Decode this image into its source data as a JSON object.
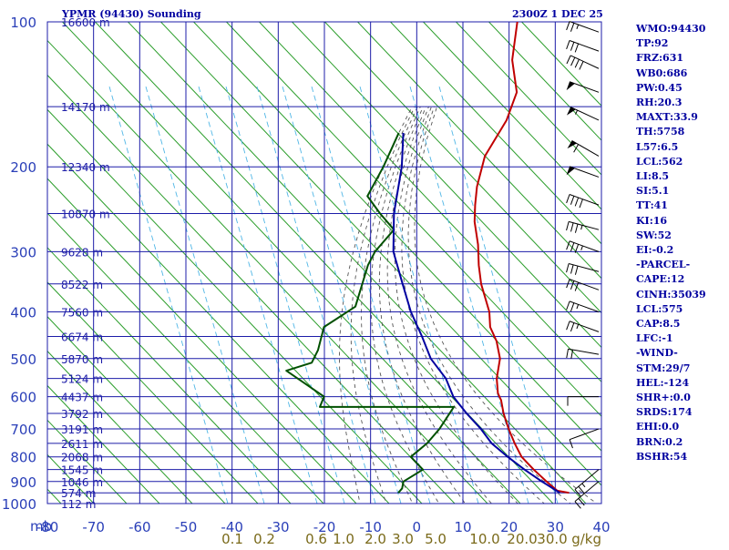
{
  "header": {
    "station": "YPMR (94430) Sounding",
    "time": "2300Z  1 DEC 25"
  },
  "indices": [
    "WMO:94430",
    "TP:92",
    "FRZ:631",
    "WB0:686",
    "PW:0.45",
    "RH:20.3",
    "MAXT:33.9",
    "TH:5758",
    "L57:6.5",
    "LCL:562",
    "LI:8.5",
    "SI:5.1",
    "TT:41",
    "KI:16",
    "SW:52",
    "EI:-0.2",
    "-PARCEL-",
    "CAPE:12",
    "CINH:35039",
    "LCL:575",
    "CAP:8.5",
    "LFC:-1",
    "-WIND-",
    "STM:29/7",
    "HEL:-124",
    "SHR+:0.0",
    "SRDS:174",
    "EHI:0.0",
    "BRN:0.2",
    "BSHR:54"
  ],
  "chart_data": {
    "type": "line",
    "title": "YPMR (94430) Sounding",
    "subtitle": "2300Z  1 DEC 25",
    "xlabel": "",
    "ylabel": "mb",
    "x_unit_label": "g/kg",
    "xlim": [
      -80,
      40
    ],
    "ylim": [
      1000,
      100
    ],
    "y_scale": "log",
    "grid": true,
    "pressure_ticks": [
      100,
      200,
      300,
      400,
      500,
      600,
      700,
      800,
      900,
      1000
    ],
    "temperature_ticks": [
      -80,
      -70,
      -60,
      -50,
      -40,
      -30,
      -20,
      -10,
      0,
      10,
      20,
      30,
      40
    ],
    "mixing_ratio_labels": [
      "0.1",
      "0.2",
      "0.6",
      "1.0",
      "2.0",
      "3.0",
      "5.0",
      "10.0",
      "20.0",
      "30.0"
    ],
    "height_labels": [
      {
        "text": "16600 m",
        "p": 100
      },
      {
        "text": "14170 m",
        "p": 150
      },
      {
        "text": "12340 m",
        "p": 200
      },
      {
        "text": "10870 m",
        "p": 250
      },
      {
        "text": "9628 m",
        "p": 300
      },
      {
        "text": "8522 m",
        "p": 350
      },
      {
        "text": "7560 m",
        "p": 400
      },
      {
        "text": "6674 m",
        "p": 450
      },
      {
        "text": "5870 m",
        "p": 500
      },
      {
        "text": "5124 m",
        "p": 550
      },
      {
        "text": "4437 m",
        "p": 600
      },
      {
        "text": "3792 m",
        "p": 650
      },
      {
        "text": "3191 m",
        "p": 700
      },
      {
        "text": "2611 m",
        "p": 750
      },
      {
        "text": "2068 m",
        "p": 800
      },
      {
        "text": "1545 m",
        "p": 850
      },
      {
        "text": "1046 m",
        "p": 900
      },
      {
        "text": "574 m",
        "p": 950
      },
      {
        "text": "112 m",
        "p": 1000
      }
    ],
    "series": [
      {
        "role": "temperature",
        "color": "#c00000",
        "points": [
          [
            100,
            -68
          ],
          [
            120,
            -62
          ],
          [
            140,
            -55
          ],
          [
            160,
            -52
          ],
          [
            190,
            -50
          ],
          [
            220,
            -46
          ],
          [
            240,
            -43
          ],
          [
            260,
            -40
          ],
          [
            290,
            -35
          ],
          [
            320,
            -31
          ],
          [
            350,
            -27
          ],
          [
            400,
            -20
          ],
          [
            430,
            -17
          ],
          [
            460,
            -13
          ],
          [
            500,
            -9
          ],
          [
            550,
            -6
          ],
          [
            590,
            -3
          ],
          [
            600,
            -2
          ],
          [
            610,
            -1
          ],
          [
            650,
            2
          ],
          [
            700,
            6
          ],
          [
            750,
            10
          ],
          [
            800,
            14
          ],
          [
            850,
            19
          ],
          [
            900,
            24
          ],
          [
            930,
            27
          ],
          [
            940,
            28
          ],
          [
            950,
            31
          ]
        ]
      },
      {
        "role": "dewpoint",
        "color": "#005000",
        "points": [
          [
            170,
            -73
          ],
          [
            200,
            -70
          ],
          [
            230,
            -68
          ],
          [
            250,
            -62
          ],
          [
            270,
            -56
          ],
          [
            300,
            -56
          ],
          [
            320,
            -55
          ],
          [
            390,
            -50
          ],
          [
            430,
            -53
          ],
          [
            480,
            -50
          ],
          [
            510,
            -49
          ],
          [
            530,
            -53
          ],
          [
            600,
            -40
          ],
          [
            630,
            -39
          ],
          [
            630,
            -10
          ],
          [
            700,
            -9
          ],
          [
            750,
            -9
          ],
          [
            800,
            -10
          ],
          [
            850,
            -5
          ],
          [
            900,
            -7
          ],
          [
            930,
            -6
          ],
          [
            950,
            -6
          ]
        ]
      },
      {
        "role": "parcel",
        "color": "#0000a0",
        "points": [
          [
            170,
            -72
          ],
          [
            200,
            -66
          ],
          [
            250,
            -59
          ],
          [
            300,
            -52
          ],
          [
            350,
            -44
          ],
          [
            400,
            -37
          ],
          [
            450,
            -30
          ],
          [
            500,
            -24
          ],
          [
            550,
            -17
          ],
          [
            600,
            -12
          ],
          [
            650,
            -6
          ],
          [
            700,
            0
          ],
          [
            750,
            5
          ],
          [
            800,
            11
          ],
          [
            850,
            17
          ],
          [
            900,
            23
          ],
          [
            950,
            29
          ]
        ]
      }
    ],
    "wind_barbs": [
      {
        "p": 105,
        "dir": 290,
        "speed": 25
      },
      {
        "p": 115,
        "dir": 290,
        "speed": 30
      },
      {
        "p": 125,
        "dir": 295,
        "speed": 40
      },
      {
        "p": 140,
        "dir": 290,
        "speed": 50
      },
      {
        "p": 160,
        "dir": 295,
        "speed": 55
      },
      {
        "p": 190,
        "dir": 300,
        "speed": 60
      },
      {
        "p": 210,
        "dir": 290,
        "speed": 50
      },
      {
        "p": 240,
        "dir": 290,
        "speed": 40
      },
      {
        "p": 270,
        "dir": 285,
        "speed": 35
      },
      {
        "p": 300,
        "dir": 290,
        "speed": 35
      },
      {
        "p": 330,
        "dir": 285,
        "speed": 30
      },
      {
        "p": 360,
        "dir": 290,
        "speed": 30
      },
      {
        "p": 400,
        "dir": 290,
        "speed": 25
      },
      {
        "p": 440,
        "dir": 290,
        "speed": 25
      },
      {
        "p": 490,
        "dir": 280,
        "speed": 20
      },
      {
        "p": 600,
        "dir": 270,
        "speed": 10
      },
      {
        "p": 700,
        "dir": 250,
        "speed": 10
      },
      {
        "p": 850,
        "dir": 230,
        "speed": 25
      },
      {
        "p": 900,
        "dir": 230,
        "speed": 20
      }
    ]
  }
}
